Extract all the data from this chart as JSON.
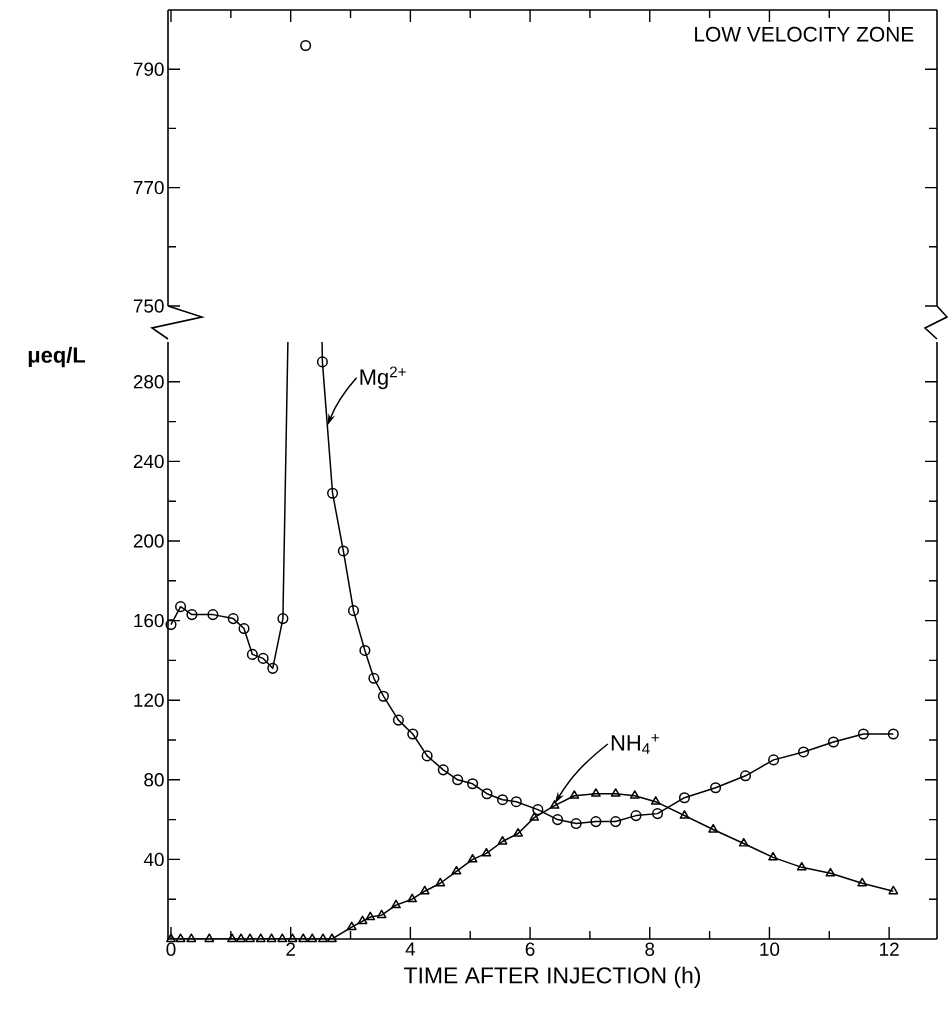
{
  "chart_data": [
    {
      "type": "line",
      "title": "LOW VELOCITY ZONE",
      "xlim": [
        -0.05,
        12.8
      ],
      "ylim": [
        750,
        800
      ],
      "xticks": [
        0,
        {
          "value": 1,
          "label": null
        },
        2,
        {
          "value": 3,
          "label": null
        },
        4,
        {
          "value": 5,
          "label": null
        },
        6,
        {
          "value": 7,
          "label": null
        },
        8,
        {
          "value": 9,
          "label": null
        },
        10,
        {
          "value": 11,
          "label": null
        },
        12
      ],
      "yticks": [
        750,
        {
          "value": 760,
          "label": null
        },
        770,
        {
          "value": 780,
          "label": null
        },
        790
      ],
      "tick_labels": "y",
      "line_style": "solid",
      "series": [
        {
          "color": "#000000",
          "marker": "circle",
          "x": [
            2.25
          ],
          "values": [
            794
          ]
        }
      ]
    },
    {
      "type": "line",
      "xlabel": "TIME AFTER INJECTION (h)",
      "ylabel": "μeq/L",
      "xlim": [
        -0.05,
        12.8
      ],
      "ylim": [
        0,
        300
      ],
      "xticks": [
        0,
        {
          "value": 1,
          "label": null
        },
        2,
        {
          "value": 3,
          "label": null
        },
        4,
        {
          "value": 5,
          "label": null
        },
        6,
        {
          "value": 7,
          "label": null
        },
        8,
        {
          "value": 9,
          "label": null
        },
        10,
        {
          "value": 11,
          "label": null
        },
        12
      ],
      "yticks": [
        {
          "value": 20,
          "label": null
        },
        40,
        {
          "value": 60,
          "label": null
        },
        80,
        {
          "value": 100,
          "label": null
        },
        120,
        {
          "value": 140,
          "label": null
        },
        160,
        {
          "value": 180,
          "label": null
        },
        200,
        {
          "value": 220,
          "label": null
        },
        240,
        {
          "value": 260,
          "label": null
        },
        280
      ],
      "line_style": "solid",
      "series": [
        {
          "name": "Mg$^{2+}$",
          "color": "#000000",
          "marker": "circle",
          "x": [
            0,
            0.16,
            0.35,
            0.7,
            1.04,
            1.22,
            1.36,
            1.54,
            1.7,
            1.87,
            2.25,
            2.53,
            2.7,
            2.88,
            3.05,
            3.24,
            3.39,
            3.55,
            3.8,
            4.04,
            4.28,
            4.55,
            4.79,
            5.04,
            5.28,
            5.54,
            5.77,
            6.13,
            6.46,
            6.77,
            7.1,
            7.43,
            7.77,
            8.13,
            8.58,
            9.1,
            9.6,
            10.07,
            10.57,
            11.07,
            11.57,
            12.07
          ],
          "values": [
            158,
            167,
            163,
            163,
            161,
            156,
            143,
            141,
            136,
            161,
            null,
            290,
            224,
            195,
            165,
            145,
            131,
            122,
            110,
            103,
            92,
            85,
            80,
            78,
            73,
            70,
            69,
            65,
            60,
            58,
            59,
            59,
            62,
            63,
            71,
            76,
            82,
            90,
            94,
            99,
            103,
            103
          ]
        },
        {
          "name": "NH$_{4}$$^{+}$",
          "color": "#000000",
          "marker": "triangle",
          "x": [
            0,
            0.16,
            0.34,
            0.64,
            1.02,
            1.17,
            1.32,
            1.5,
            1.68,
            1.86,
            2.03,
            2.21,
            2.36,
            2.54,
            2.69,
            3.02,
            3.2,
            3.33,
            3.52,
            3.76,
            4.03,
            4.24,
            4.5,
            4.77,
            5.04,
            5.27,
            5.54,
            5.8,
            6.07,
            6.41,
            6.74,
            7.1,
            7.43,
            7.75,
            8.1,
            8.58,
            9.06,
            9.57,
            10.06,
            10.54,
            11.02,
            11.55,
            12.07
          ],
          "values": [
            0,
            0,
            0,
            0,
            0,
            0,
            0,
            0,
            0,
            0,
            0,
            0,
            0,
            0,
            0,
            6,
            9,
            11,
            12,
            17,
            20,
            24,
            28,
            34,
            40,
            43,
            49,
            53,
            61,
            67,
            72,
            73,
            73,
            72,
            69,
            62,
            55,
            48,
            41,
            36,
            33,
            28,
            24
          ]
        }
      ]
    }
  ]
}
